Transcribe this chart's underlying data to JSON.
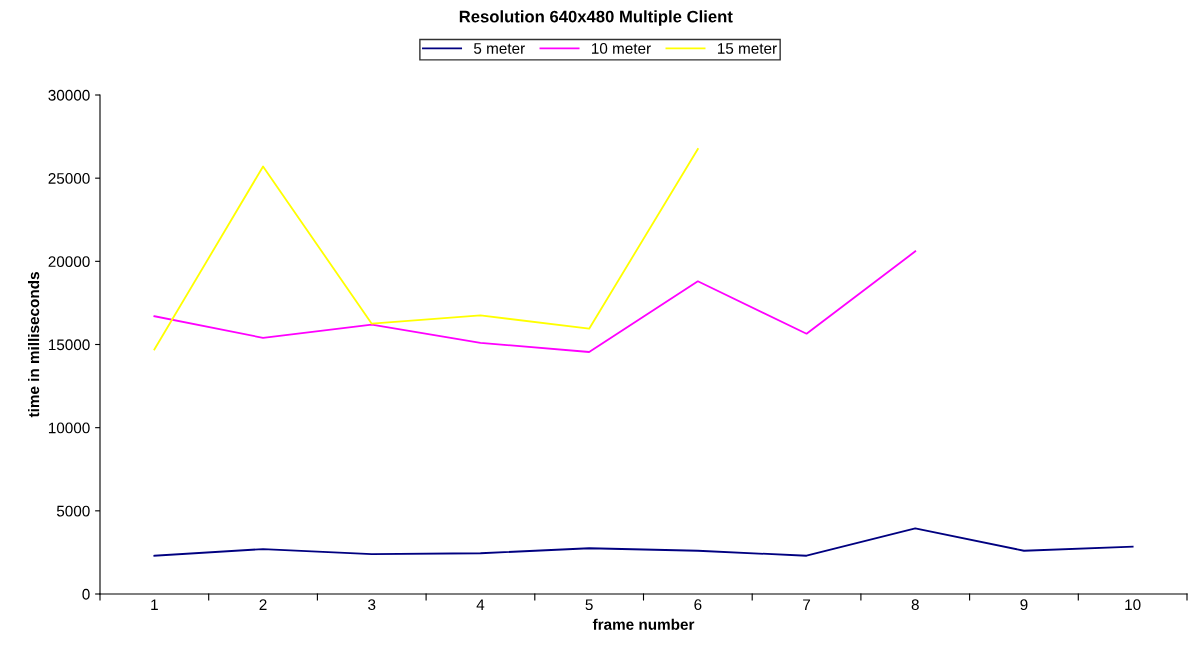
{
  "chart_data": {
    "type": "line",
    "title": "Resolution 640x480 Multiple Client",
    "xlabel": "frame number",
    "ylabel": "time in milliseconds",
    "categories": [
      "1",
      "2",
      "3",
      "4",
      "5",
      "6",
      "7",
      "8",
      "9",
      "10"
    ],
    "series": [
      {
        "name": "5 meter",
        "color": "#000080",
        "values": [
          2300,
          2700,
          2400,
          2450,
          2750,
          2600,
          2300,
          3950,
          2600,
          2850
        ]
      },
      {
        "name": "10 meter",
        "color": "#ff00ff",
        "values": [
          16700,
          15400,
          16200,
          15100,
          14550,
          18800,
          15650,
          20600,
          null,
          null
        ]
      },
      {
        "name": "15 meter",
        "color": "#ffff00",
        "values": [
          14700,
          25700,
          16250,
          16750,
          15950,
          26750,
          null,
          null,
          null,
          null
        ]
      }
    ],
    "ylim": [
      0,
      30000
    ],
    "yticks": [
      0,
      5000,
      10000,
      15000,
      20000,
      25000,
      30000
    ],
    "grid": false,
    "legend": "top",
    "marker": "none",
    "line_style": "solid"
  }
}
